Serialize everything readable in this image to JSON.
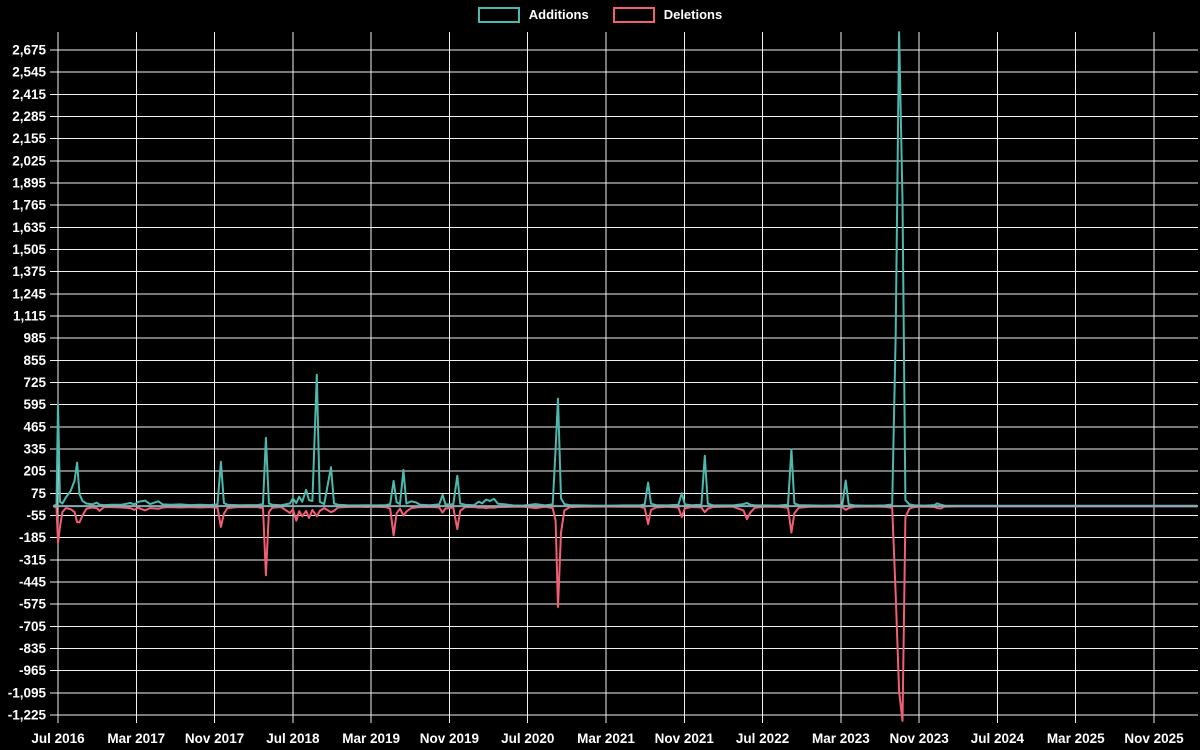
{
  "chart_data": {
    "type": "line",
    "title": "",
    "legend": [
      {
        "label": "Additions",
        "color": "#4cb9ae"
      },
      {
        "label": "Deletions",
        "color": "#f25f73"
      }
    ],
    "colors": {
      "background": "#000000",
      "grid": "#f0f0f0",
      "text": "#ffffff",
      "zero_line": "#85abb4",
      "additions": "#4cb9ae",
      "deletions": "#f25f73"
    },
    "x_axis": {
      "tick_labels": [
        "Jul 2016",
        "Mar 2017",
        "Nov 2017",
        "Jul 2018",
        "Mar 2019",
        "Nov 2019",
        "Jul 2020",
        "Mar 2021",
        "Nov 2021",
        "Jul 2022",
        "Mar 2023",
        "Nov 2023",
        "Jul 2024",
        "Mar 2025",
        "Nov 2025"
      ],
      "months_per_tick": 8
    },
    "y_axis": {
      "min": -1225,
      "max": 2675,
      "step": 130,
      "tick_labels": [
        "2,675",
        "2,545",
        "2,415",
        "2,285",
        "2,155",
        "2,025",
        "1,895",
        "1,765",
        "1,635",
        "1,505",
        "1,375",
        "1,245",
        "1,115",
        "985",
        "855",
        "725",
        "595",
        "465",
        "335",
        "205",
        "75",
        "-55",
        "-185",
        "-315",
        "-445",
        "-575",
        "-705",
        "-835",
        "-965",
        "-1,095",
        "-1,225"
      ]
    },
    "x_unit": "months_since_Jul_2016",
    "points": [
      [
        -0.5,
        0,
        0
      ],
      [
        -0.15,
        8,
        -8
      ],
      [
        0,
        600,
        -215
      ],
      [
        0.2,
        25,
        -120
      ],
      [
        0.45,
        15,
        -35
      ],
      [
        0.8,
        50,
        -12
      ],
      [
        1.3,
        90,
        -18
      ],
      [
        1.7,
        150,
        -35
      ],
      [
        1.95,
        255,
        -95
      ],
      [
        2.2,
        70,
        -95
      ],
      [
        2.5,
        30,
        -55
      ],
      [
        2.9,
        15,
        -15
      ],
      [
        3.5,
        10,
        -8
      ],
      [
        3.95,
        20,
        -12
      ],
      [
        4.25,
        8,
        -28
      ],
      [
        4.7,
        6,
        -6
      ],
      [
        5.5,
        8,
        -6
      ],
      [
        6.5,
        8,
        -8
      ],
      [
        7.4,
        18,
        -12
      ],
      [
        7.8,
        10,
        -22
      ],
      [
        8.2,
        25,
        -10
      ],
      [
        8.9,
        32,
        -25
      ],
      [
        9.4,
        12,
        -12
      ],
      [
        10.25,
        28,
        -16
      ],
      [
        10.7,
        10,
        -8
      ],
      [
        11.5,
        8,
        -6
      ],
      [
        12.5,
        10,
        -8
      ],
      [
        13.5,
        6,
        -6
      ],
      [
        14.5,
        8,
        -8
      ],
      [
        15.5,
        6,
        -6
      ],
      [
        16.3,
        10,
        -10
      ],
      [
        16.65,
        260,
        -122
      ],
      [
        16.95,
        18,
        -45
      ],
      [
        17.3,
        8,
        -12
      ],
      [
        18.5,
        5,
        -5
      ],
      [
        19.5,
        6,
        -6
      ],
      [
        20.4,
        6,
        -6
      ],
      [
        20.95,
        12,
        -12
      ],
      [
        21.25,
        400,
        -405
      ],
      [
        21.55,
        15,
        -35
      ],
      [
        21.9,
        8,
        -10
      ],
      [
        22.8,
        5,
        -5
      ],
      [
        23.7,
        15,
        -40
      ],
      [
        24.0,
        45,
        -20
      ],
      [
        24.35,
        18,
        -85
      ],
      [
        24.65,
        55,
        -30
      ],
      [
        24.95,
        25,
        -60
      ],
      [
        25.35,
        95,
        -28
      ],
      [
        25.65,
        35,
        -70
      ],
      [
        26.0,
        30,
        -22
      ],
      [
        26.45,
        770,
        -60
      ],
      [
        26.75,
        25,
        -28
      ],
      [
        27.2,
        12,
        -12
      ],
      [
        27.9,
        228,
        -35
      ],
      [
        28.2,
        15,
        -28
      ],
      [
        28.6,
        8,
        -8
      ],
      [
        29.5,
        5,
        -5
      ],
      [
        30.5,
        4,
        -4
      ],
      [
        31.5,
        5,
        -5
      ],
      [
        32.5,
        4,
        -4
      ],
      [
        33.5,
        6,
        -6
      ],
      [
        33.95,
        12,
        -15
      ],
      [
        34.3,
        148,
        -172
      ],
      [
        34.6,
        22,
        -42
      ],
      [
        34.95,
        12,
        -15
      ],
      [
        35.3,
        212,
        -55
      ],
      [
        35.6,
        15,
        -32
      ],
      [
        36.1,
        28,
        -12
      ],
      [
        36.55,
        22,
        -8
      ],
      [
        37.0,
        8,
        -6
      ],
      [
        38.0,
        5,
        -5
      ],
      [
        38.95,
        10,
        -8
      ],
      [
        39.3,
        66,
        -38
      ],
      [
        39.6,
        10,
        -14
      ],
      [
        40.4,
        10,
        -8
      ],
      [
        40.8,
        178,
        -135
      ],
      [
        41.1,
        15,
        -28
      ],
      [
        41.6,
        8,
        -6
      ],
      [
        42.5,
        5,
        -5
      ],
      [
        43.0,
        26,
        -10
      ],
      [
        43.35,
        16,
        -8
      ],
      [
        43.75,
        38,
        -12
      ],
      [
        44.15,
        30,
        -8
      ],
      [
        44.55,
        42,
        -10
      ],
      [
        44.95,
        14,
        -6
      ],
      [
        45.7,
        10,
        -5
      ],
      [
        46.5,
        4,
        -4
      ],
      [
        47.5,
        3,
        -3
      ],
      [
        48.8,
        12,
        -12
      ],
      [
        49.8,
        4,
        -4
      ],
      [
        50.55,
        10,
        -12
      ],
      [
        50.85,
        335,
        -85
      ],
      [
        51.1,
        630,
        -592
      ],
      [
        51.4,
        45,
        -155
      ],
      [
        51.75,
        12,
        -25
      ],
      [
        52.3,
        6,
        -6
      ],
      [
        53.5,
        4,
        -4
      ],
      [
        55,
        3,
        -3
      ],
      [
        56.5,
        3,
        -3
      ],
      [
        58,
        4,
        -4
      ],
      [
        59.5,
        4,
        -4
      ],
      [
        59.95,
        10,
        -12
      ],
      [
        60.3,
        138,
        -105
      ],
      [
        60.6,
        14,
        -22
      ],
      [
        61.1,
        6,
        -8
      ],
      [
        62.2,
        4,
        -4
      ],
      [
        63.4,
        8,
        -8
      ],
      [
        63.75,
        76,
        -64
      ],
      [
        64.05,
        10,
        -14
      ],
      [
        64.7,
        5,
        -5
      ],
      [
        65.75,
        8,
        -8
      ],
      [
        66.1,
        295,
        -35
      ],
      [
        66.4,
        14,
        -16
      ],
      [
        66.9,
        5,
        -5
      ],
      [
        68,
        4,
        -4
      ],
      [
        69,
        4,
        -4
      ],
      [
        70.05,
        12,
        -25
      ],
      [
        70.4,
        18,
        -76
      ],
      [
        70.75,
        8,
        -38
      ],
      [
        71.2,
        5,
        -10
      ],
      [
        72.2,
        4,
        -4
      ],
      [
        73.5,
        3,
        -3
      ],
      [
        74.6,
        8,
        -10
      ],
      [
        74.95,
        332,
        -155
      ],
      [
        75.25,
        16,
        -42
      ],
      [
        75.7,
        6,
        -10
      ],
      [
        76.8,
        4,
        -4
      ],
      [
        78.2,
        3,
        -3
      ],
      [
        79.4,
        4,
        -4
      ],
      [
        80.15,
        6,
        -6
      ],
      [
        80.5,
        150,
        -22
      ],
      [
        80.8,
        10,
        -12
      ],
      [
        81.4,
        4,
        -4
      ],
      [
        82.5,
        3,
        -3
      ],
      [
        83.5,
        3,
        -3
      ],
      [
        84.5,
        4,
        -4
      ],
      [
        85.25,
        10,
        -10
      ],
      [
        85.6,
        1010,
        -520
      ],
      [
        85.95,
        2780,
        -1085
      ],
      [
        86.3,
        1790,
        -1260
      ],
      [
        86.6,
        35,
        -65
      ],
      [
        87.0,
        10,
        -15
      ],
      [
        87.5,
        5,
        -5
      ],
      [
        88.5,
        3,
        -3
      ],
      [
        89.55,
        6,
        -5
      ],
      [
        89.85,
        16,
        -12
      ],
      [
        90.2,
        8,
        -14
      ],
      [
        90.6,
        3,
        -3
      ],
      [
        92,
        2,
        -2
      ],
      [
        94,
        2,
        -2
      ],
      [
        96,
        2,
        -2
      ],
      [
        98,
        2,
        -2
      ],
      [
        100,
        2,
        -2
      ],
      [
        103,
        2,
        -2
      ],
      [
        106,
        2,
        -2
      ],
      [
        109,
        2,
        -2
      ],
      [
        112,
        2,
        -2
      ],
      [
        114,
        2,
        -2
      ],
      [
        116.4,
        2,
        -2
      ]
    ]
  }
}
